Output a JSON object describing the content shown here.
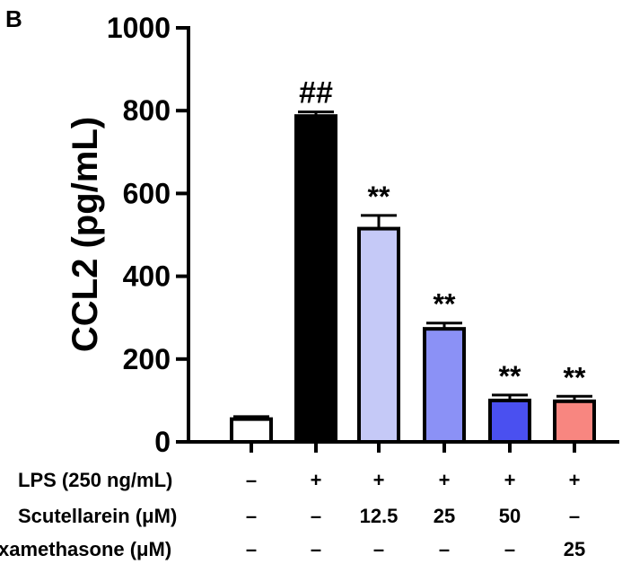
{
  "panel_label": "B",
  "chart_data": {
    "type": "bar",
    "ylabel": "CCL2 (pg/mL)",
    "ylim": [
      0,
      1000
    ],
    "yticks": [
      0,
      200,
      400,
      600,
      800,
      1000
    ],
    "grid": false,
    "legend": "none",
    "bars": [
      {
        "value": 55,
        "error": 6,
        "color": "#ffffff",
        "annotation": ""
      },
      {
        "value": 787,
        "error": 10,
        "color": "#000000",
        "annotation": "##"
      },
      {
        "value": 515,
        "error": 32,
        "color": "#c5c9f7",
        "annotation": "**"
      },
      {
        "value": 273,
        "error": 14,
        "color": "#8b91f6",
        "annotation": "**"
      },
      {
        "value": 100,
        "error": 13,
        "color": "#4a50f0",
        "annotation": "**"
      },
      {
        "value": 98,
        "error": 12,
        "color": "#f88680",
        "annotation": "**"
      }
    ],
    "conditions": [
      {
        "label": "LPS (250 ng/mL)",
        "values": [
          "–",
          "+",
          "+",
          "+",
          "+",
          "+"
        ]
      },
      {
        "label": "Scutellarein (μM)",
        "values": [
          "–",
          "–",
          "12.5",
          "25",
          "50",
          "–"
        ]
      },
      {
        "label": "xamethasone (μM)",
        "values": [
          "–",
          "–",
          "–",
          "–",
          "–",
          "25"
        ]
      }
    ]
  }
}
